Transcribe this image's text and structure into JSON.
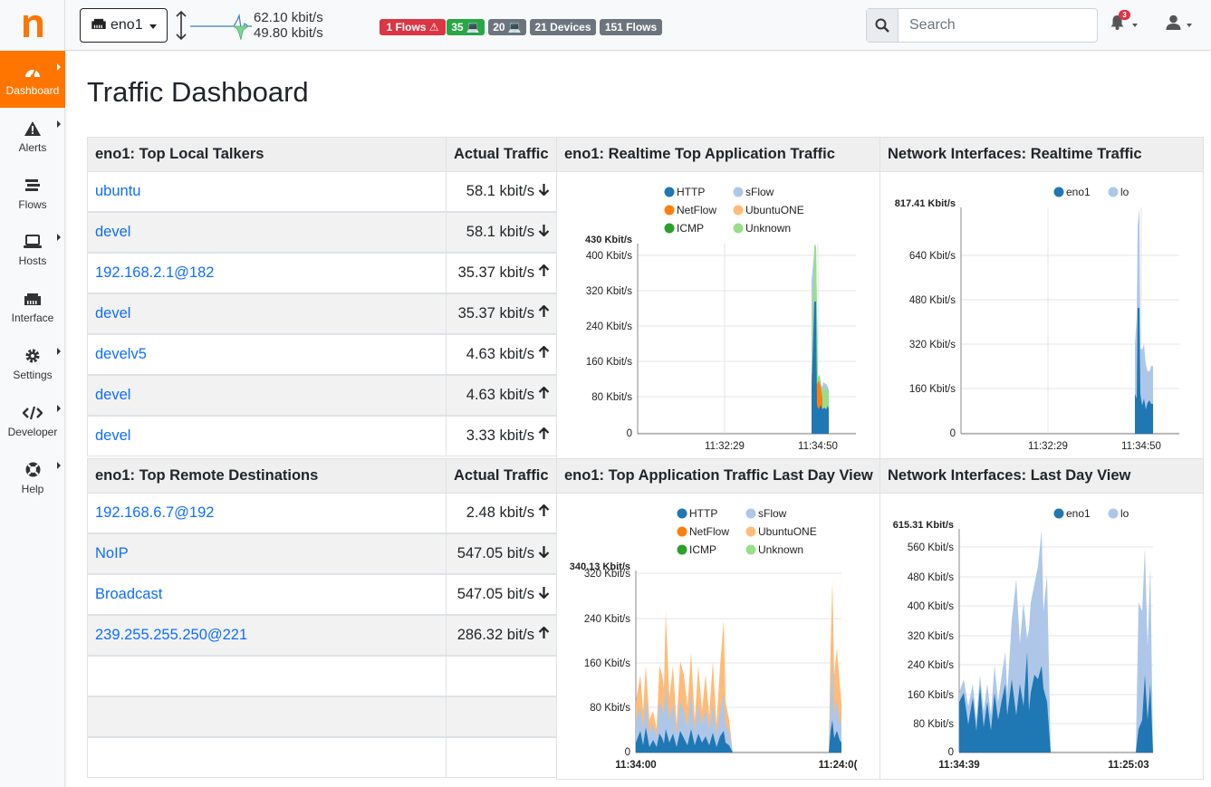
{
  "topbar": {
    "interface": "eno1",
    "rate_up": "62.10 kbit/s",
    "rate_down": "49.80 kbit/s",
    "badges": [
      {
        "label": "1 Flows ⚠",
        "color": "#dc3545"
      },
      {
        "label": "35 💻",
        "color": "#28a745"
      },
      {
        "label": "20 💻",
        "color": "#6c757d"
      },
      {
        "label": "21 Devices",
        "color": "#6c757d"
      },
      {
        "label": "151 Flows",
        "color": "#6c757d"
      }
    ],
    "search_placeholder": "Search",
    "notifications": "3"
  },
  "sidebar": {
    "items": [
      {
        "label": "Dashboard",
        "icon": "gauge-icon",
        "active": true
      },
      {
        "label": "Alerts",
        "icon": "warning-icon"
      },
      {
        "label": "Flows",
        "icon": "stream-icon"
      },
      {
        "label": "Hosts",
        "icon": "laptop-icon"
      },
      {
        "label": "Interface",
        "icon": "ethernet-icon"
      },
      {
        "label": "Settings",
        "icon": "cog-icon"
      },
      {
        "label": "Developer",
        "icon": "code-icon"
      },
      {
        "label": "Help",
        "icon": "lifering-icon"
      }
    ]
  },
  "page": {
    "title": "Traffic Dashboard"
  },
  "local_talkers": {
    "header": "eno1: Top Local Talkers",
    "value_header": "Actual Traffic",
    "rows": [
      {
        "name": "ubuntu",
        "value": "58.1 kbit/s",
        "dir": "down"
      },
      {
        "name": "devel",
        "value": "58.1 kbit/s",
        "dir": "down"
      },
      {
        "name": "192.168.2.1@182",
        "value": "35.37 kbit/s",
        "dir": "up"
      },
      {
        "name": "devel",
        "value": "35.37 kbit/s",
        "dir": "up"
      },
      {
        "name": "develv5",
        "value": "4.63 kbit/s",
        "dir": "up"
      },
      {
        "name": "devel",
        "value": "4.63 kbit/s",
        "dir": "up"
      },
      {
        "name": "devel",
        "value": "3.33 kbit/s",
        "dir": "up"
      }
    ]
  },
  "remote_destinations": {
    "header": "eno1: Top Remote Destinations",
    "value_header": "Actual Traffic",
    "rows": [
      {
        "name": "192.168.6.7@192",
        "value": "2.48 kbit/s",
        "dir": "up"
      },
      {
        "name": "NoIP",
        "value": "547.05 bit/s",
        "dir": "down"
      },
      {
        "name": "Broadcast",
        "value": "547.05 bit/s",
        "dir": "down"
      },
      {
        "name": "239.255.255.250@221",
        "value": "286.32 bit/s",
        "dir": "up"
      },
      {
        "name": "",
        "value": "",
        "dir": ""
      },
      {
        "name": "",
        "value": "",
        "dir": ""
      },
      {
        "name": "",
        "value": "",
        "dir": ""
      }
    ]
  },
  "colors": {
    "HTTP": "#1f77b4",
    "sFlow": "#aec7e8",
    "NetFlow": "#ff7f0e",
    "UbuntuONE": "#ffbb78",
    "ICMP": "#2ca02c",
    "Unknown": "#98df8a",
    "eno1": "#1f77b4",
    "lo": "#aec7e8"
  },
  "chart_data": [
    {
      "type": "area",
      "title": "eno1: Realtime Top Application Traffic",
      "legend": [
        "HTTP",
        "sFlow",
        "NetFlow",
        "UbuntuONE",
        "ICMP",
        "Unknown"
      ],
      "max_label": "430 Kbit/s",
      "yticks": [
        "400 Kbit/s",
        "320 Kbit/s",
        "240 Kbit/s",
        "160 Kbit/s",
        "80 Kbit/s",
        "0"
      ],
      "xticks": [
        "11:32:29",
        "11:34:50"
      ]
    },
    {
      "type": "area",
      "title": "Network Interfaces: Realtime Traffic",
      "legend": [
        "eno1",
        "lo"
      ],
      "max_label": "817.41 Kbit/s",
      "yticks": [
        "640 Kbit/s",
        "480 Kbit/s",
        "320 Kbit/s",
        "160 Kbit/s",
        "0"
      ],
      "xticks": [
        "11:32:29",
        "11:34:50"
      ]
    },
    {
      "type": "area",
      "title": "eno1: Top Application Traffic Last Day View",
      "legend": [
        "HTTP",
        "sFlow",
        "NetFlow",
        "UbuntuONE",
        "ICMP",
        "Unknown"
      ],
      "max_label": "340.13 Kbit/s",
      "yticks": [
        "320 Kbit/s",
        "240 Kbit/s",
        "160 Kbit/s",
        "80 Kbit/s",
        "0"
      ],
      "xticks": [
        "11:34:00",
        "11:24:0("
      ]
    },
    {
      "type": "area",
      "title": "Network Interfaces: Last Day View",
      "legend": [
        "eno1",
        "lo"
      ],
      "max_label": "615.31 Kbit/s",
      "yticks": [
        "560 Kbit/s",
        "480 Kbit/s",
        "400 Kbit/s",
        "320 Kbit/s",
        "240 Kbit/s",
        "160 Kbit/s",
        "80 Kbit/s",
        "0"
      ],
      "xticks": [
        "11:34:39",
        "11:25:03"
      ]
    }
  ]
}
